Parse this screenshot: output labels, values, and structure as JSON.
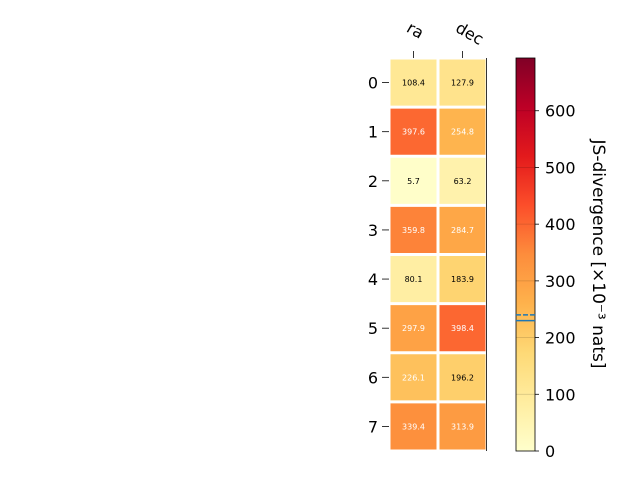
{
  "chart_data": {
    "type": "heatmap",
    "columns": [
      "ra",
      "dec"
    ],
    "rows": [
      "0",
      "1",
      "2",
      "3",
      "4",
      "5",
      "6",
      "7"
    ],
    "values": [
      [
        108.4,
        127.9
      ],
      [
        397.6,
        254.8
      ],
      [
        5.7,
        63.2
      ],
      [
        359.8,
        284.7
      ],
      [
        80.1,
        183.9
      ],
      [
        297.9,
        398.4
      ],
      [
        226.1,
        196.2
      ],
      [
        339.4,
        313.9
      ]
    ],
    "value_labels": [
      [
        "108.4",
        "127.9"
      ],
      [
        "397.6",
        "254.8"
      ],
      [
        "5.7",
        "63.2"
      ],
      [
        "359.8",
        "284.7"
      ],
      [
        "80.1",
        "183.9"
      ],
      [
        "297.9",
        "398.4"
      ],
      [
        "226.1",
        "196.2"
      ],
      [
        "339.4",
        "313.9"
      ]
    ],
    "colorbar": {
      "label": "JS-divergence [×10⁻³ nats]",
      "range": [
        0,
        693
      ],
      "ticks": [
        0,
        100,
        200,
        300,
        400,
        500,
        600
      ],
      "tick_labels": [
        "0",
        "100",
        "200",
        "300",
        "400",
        "500",
        "600"
      ],
      "colormap": "YlOrRd",
      "reference_lines": [
        {
          "value": 240,
          "style": "dashed",
          "color": "#1f77b4"
        },
        {
          "value": 230,
          "style": "solid",
          "color": "#1f77b4"
        }
      ]
    }
  }
}
